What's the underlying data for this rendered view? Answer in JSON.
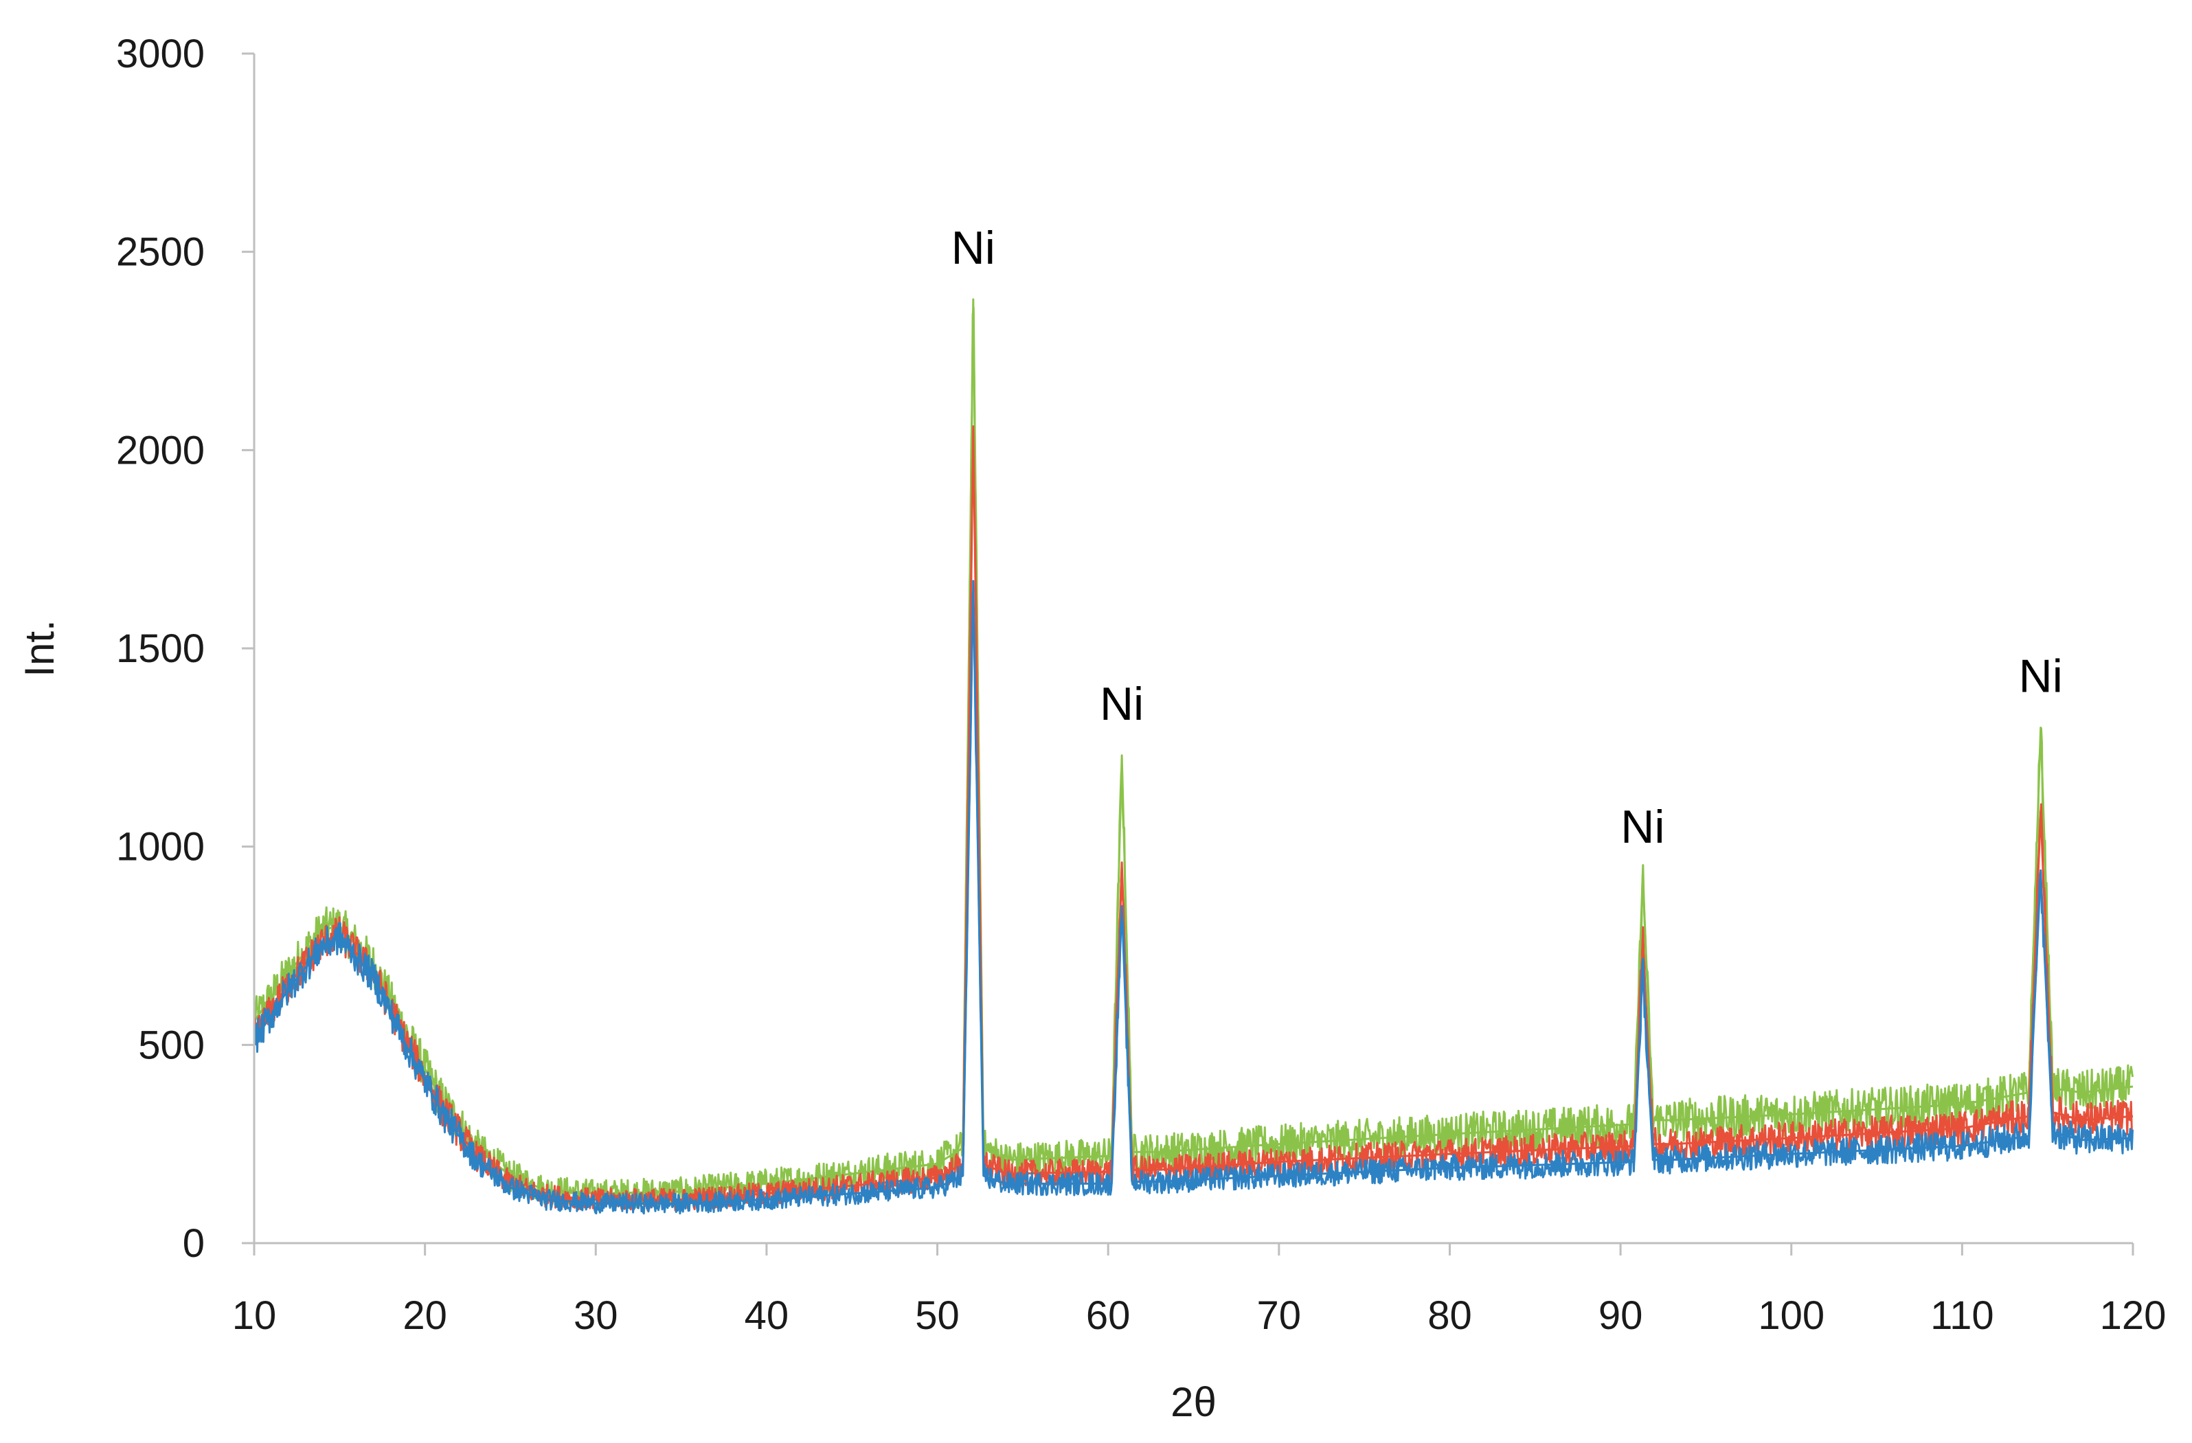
{
  "chart_data": {
    "type": "line",
    "title": "",
    "xlabel": "2θ",
    "ylabel": "Int.",
    "xlim": [
      10,
      120
    ],
    "ylim": [
      0,
      3000
    ],
    "x_ticks": [
      10,
      20,
      30,
      40,
      50,
      60,
      70,
      80,
      90,
      100,
      110,
      120
    ],
    "y_ticks": [
      0,
      500,
      1000,
      1500,
      2000,
      2500,
      3000
    ],
    "grid": false,
    "legend": "none",
    "annotations": [
      {
        "text": "Ni",
        "x": 52.1,
        "y": 2470
      },
      {
        "text": "Ni",
        "x": 60.8,
        "y": 1320
      },
      {
        "text": "Ni",
        "x": 91.3,
        "y": 1010
      },
      {
        "text": "Ni",
        "x": 114.6,
        "y": 1390
      }
    ],
    "series": [
      {
        "color": "#8bc34a",
        "noise": 55,
        "x": [
          10,
          12,
          14,
          15,
          17,
          19,
          21,
          23,
          25,
          27,
          30,
          35,
          40,
          45,
          50,
          51.5,
          52.1,
          52.7,
          54,
          60.2,
          60.8,
          61.4,
          63,
          70,
          80,
          90.8,
          91.3,
          91.9,
          93,
          100,
          110,
          113.9,
          114.6,
          115.3,
          117,
          120
        ],
        "y": [
          560,
          680,
          790,
          800,
          700,
          520,
          360,
          240,
          170,
          135,
          125,
          130,
          150,
          175,
          200,
          240,
          2380,
          240,
          210,
          220,
          1230,
          230,
          230,
          250,
          275,
          300,
          930,
          310,
          310,
          325,
          350,
          380,
          1300,
          390,
          380,
          395
        ]
      },
      {
        "color": "#e8503a",
        "noise": 45,
        "x": [
          10,
          12,
          14,
          15,
          17,
          19,
          21,
          23,
          25,
          27,
          30,
          35,
          40,
          45,
          50,
          51.5,
          52.1,
          52.7,
          54,
          60.2,
          60.8,
          61.4,
          63,
          70,
          80,
          90.8,
          91.3,
          91.9,
          93,
          100,
          110,
          113.9,
          114.6,
          115.3,
          117,
          120
        ],
        "y": [
          520,
          650,
          760,
          780,
          680,
          500,
          340,
          220,
          150,
          120,
          110,
          110,
          125,
          145,
          165,
          200,
          2060,
          200,
          175,
          180,
          960,
          185,
          185,
          205,
          225,
          245,
          770,
          250,
          250,
          265,
          290,
          320,
          1090,
          330,
          310,
          320
        ]
      },
      {
        "color": "#2d82c4",
        "noise": 42,
        "x": [
          10,
          12,
          14,
          15,
          17,
          19,
          21,
          23,
          25,
          27,
          30,
          35,
          40,
          45,
          50,
          51.5,
          52.1,
          52.7,
          54,
          60.2,
          60.8,
          61.4,
          63,
          70,
          80,
          90.8,
          91.3,
          91.9,
          93,
          100,
          110,
          113.9,
          114.6,
          115.3,
          117,
          120
        ],
        "y": [
          510,
          640,
          750,
          770,
          670,
          490,
          330,
          210,
          140,
          110,
          100,
          100,
          110,
          125,
          140,
          170,
          1670,
          170,
          150,
          150,
          850,
          155,
          155,
          170,
          190,
          205,
          690,
          210,
          210,
          225,
          245,
          270,
          940,
          280,
          260,
          265
        ]
      }
    ]
  }
}
